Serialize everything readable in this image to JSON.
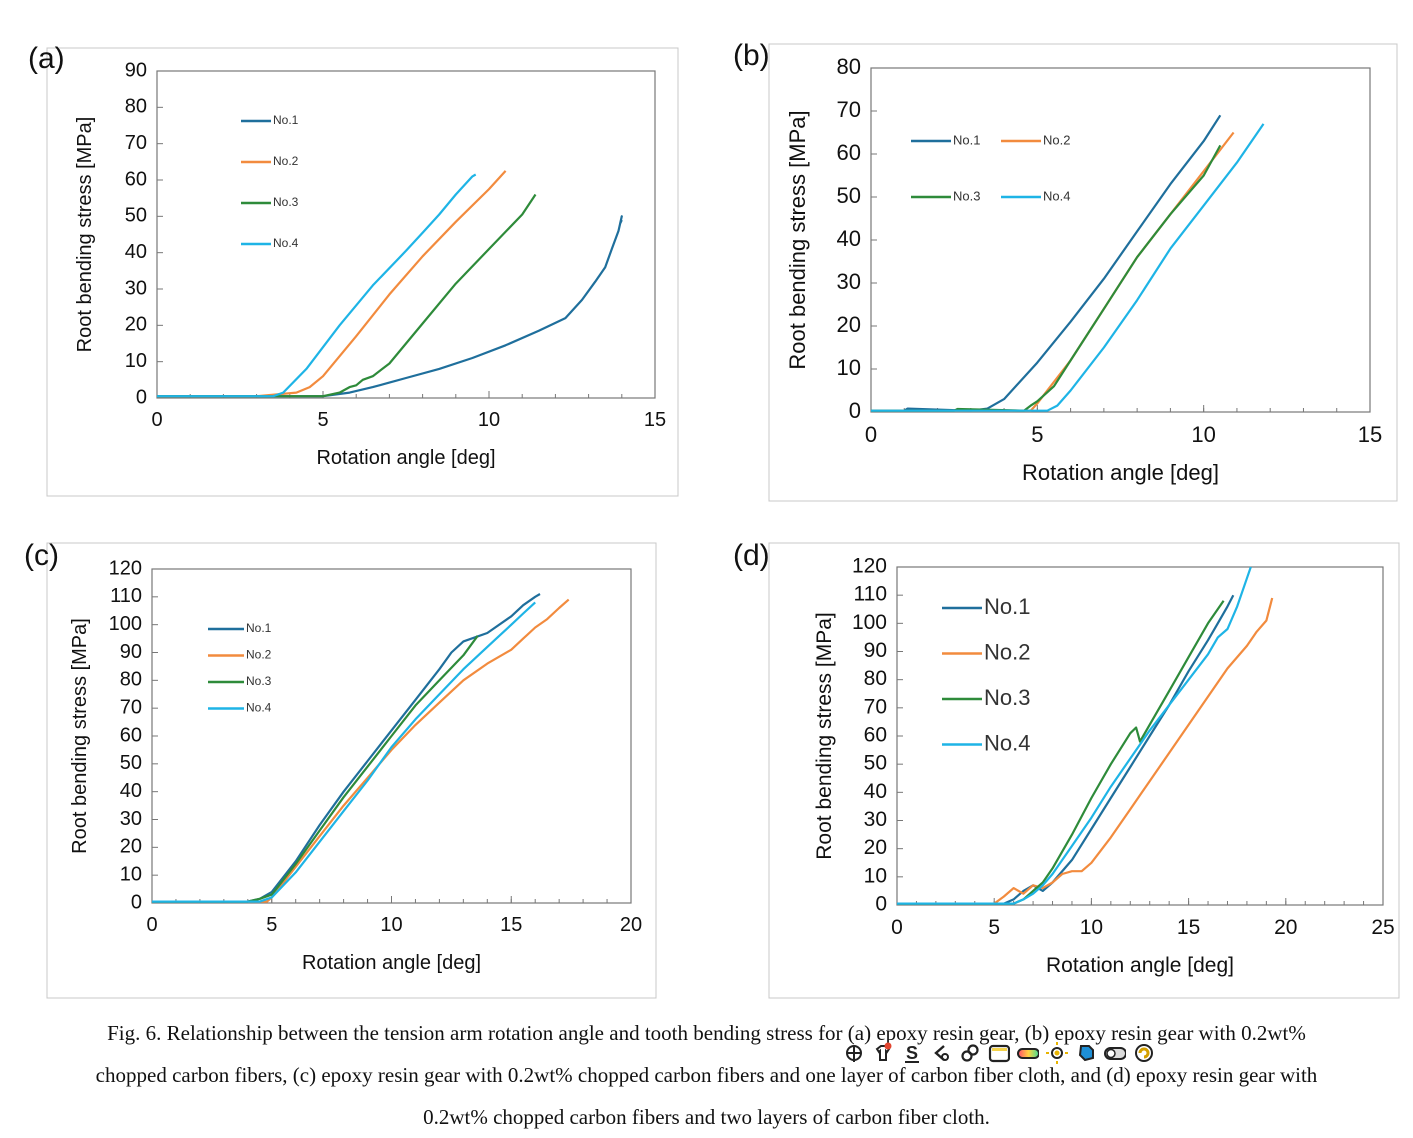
{
  "chart_data": [
    {
      "type": "line",
      "panel_label": "(a)",
      "xlabel": "Rotation angle [deg]",
      "ylabel": "Root bending stress [MPa]",
      "xlim": [
        0,
        15
      ],
      "ylim": [
        0,
        90
      ],
      "xticks": [
        0,
        5,
        10,
        15
      ],
      "yticks": [
        0,
        10,
        20,
        30,
        40,
        50,
        60,
        70,
        80,
        90
      ],
      "grid": false,
      "legend": "upper-left-inside, stacked",
      "series": [
        {
          "name": "No.1",
          "color": "#1f6f9c",
          "x": [
            0,
            3,
            5.0,
            5.8,
            6.5,
            7.5,
            8.5,
            9.5,
            10.5,
            11.5,
            12.3,
            12.8,
            13.2,
            13.5,
            13.7,
            13.9,
            14.0,
            13.95,
            14.0
          ],
          "y": [
            0.5,
            0.5,
            0.5,
            1.5,
            3,
            5.5,
            8,
            11,
            14.5,
            18.5,
            22,
            27,
            32,
            36,
            41,
            46,
            50,
            48,
            49
          ]
        },
        {
          "name": "No.2",
          "color": "#f28b3e",
          "x": [
            0,
            3,
            4.2,
            4.6,
            5.0,
            6.0,
            7.0,
            8.0,
            9.0,
            10.0,
            10.5
          ],
          "y": [
            0.5,
            0.5,
            1.5,
            3,
            6,
            17,
            28.5,
            39,
            48.5,
            57.5,
            62.5
          ]
        },
        {
          "name": "No.3",
          "color": "#2e8b3a",
          "x": [
            0,
            5.0,
            5.5,
            5.8,
            6.0,
            6.2,
            6.5,
            7.0,
            8.0,
            9.0,
            10.0,
            11.0,
            11.4
          ],
          "y": [
            0.5,
            0.5,
            1.5,
            3,
            3.5,
            5,
            6,
            9.5,
            20.5,
            31.5,
            41,
            50.5,
            56
          ]
        },
        {
          "name": "No.4",
          "color": "#1eb4e6",
          "x": [
            0,
            3.5,
            3.8,
            4.5,
            5.5,
            6.5,
            7.5,
            8.0,
            8.5,
            9.0,
            9.5,
            9.6
          ],
          "y": [
            0.5,
            0.5,
            1.5,
            8,
            20,
            31,
            40.5,
            45.5,
            50.5,
            56,
            61,
            61.5
          ]
        }
      ]
    },
    {
      "type": "line",
      "panel_label": "(b)",
      "xlabel": "Rotation angle [deg]",
      "ylabel": "Root bending stress [MPa]",
      "xlim": [
        0,
        15
      ],
      "ylim": [
        0,
        80
      ],
      "xticks": [
        0,
        5,
        10,
        15
      ],
      "yticks": [
        0,
        10,
        20,
        30,
        40,
        50,
        60,
        70,
        80
      ],
      "grid": false,
      "legend": "upper-left-inside, two columns",
      "series": [
        {
          "name": "No.1",
          "color": "#1f6f9c",
          "x": [
            0,
            1.0,
            1.1,
            3.0,
            3.5,
            4.0,
            5.0,
            6.0,
            7.0,
            8.0,
            9.0,
            10.0,
            10.5
          ],
          "y": [
            0.3,
            0.3,
            0.8,
            0.3,
            0.8,
            3,
            11.5,
            21,
            31,
            42,
            53,
            63,
            69
          ]
        },
        {
          "name": "No.2",
          "color": "#f28b3e",
          "x": [
            0,
            4.8,
            5.0,
            6.0,
            7.0,
            8.0,
            9.0,
            10.0,
            10.9
          ],
          "y": [
            0.3,
            0.3,
            2,
            12,
            24,
            36,
            46,
            56,
            65
          ]
        },
        {
          "name": "No.3",
          "color": "#2e8b3a",
          "x": [
            0,
            2.5,
            2.6,
            4.6,
            4.8,
            5.0,
            5.5,
            6.0,
            7.0,
            8.0,
            9.0,
            10.0,
            10.5
          ],
          "y": [
            0.3,
            0.3,
            0.7,
            0.3,
            1.5,
            2.5,
            6,
            12,
            24,
            36,
            46,
            55,
            62
          ]
        },
        {
          "name": "No.4",
          "color": "#1eb4e6",
          "x": [
            0,
            5.3,
            5.6,
            6.0,
            7.0,
            8.0,
            9.0,
            10.0,
            11.0,
            11.8
          ],
          "y": [
            0.3,
            0.3,
            1.5,
            5,
            15,
            26,
            38,
            48,
            58,
            67
          ]
        }
      ]
    },
    {
      "type": "line",
      "panel_label": "(c)",
      "xlabel": "Rotation angle [deg]",
      "ylabel": "Root bending stress [MPa]",
      "xlim": [
        0,
        20
      ],
      "ylim": [
        0,
        120
      ],
      "xticks": [
        0,
        5,
        10,
        15,
        20
      ],
      "yticks": [
        0,
        10,
        20,
        30,
        40,
        50,
        60,
        70,
        80,
        90,
        100,
        110,
        120
      ],
      "grid": false,
      "legend": "upper-left-inside, stacked",
      "series": [
        {
          "name": "No.1",
          "color": "#1f6f9c",
          "x": [
            0,
            4.0,
            4.5,
            5.0,
            6.0,
            7.0,
            8.0,
            9.0,
            10.0,
            11.0,
            12.0,
            12.5,
            13.0,
            14.0,
            15.0,
            15.5,
            16.0,
            16.2
          ],
          "y": [
            0.5,
            0.5,
            1.5,
            4,
            15,
            28,
            40,
            51,
            62,
            73,
            84,
            90,
            94,
            97,
            103,
            107,
            110,
            111
          ]
        },
        {
          "name": "No.2",
          "color": "#f28b3e",
          "x": [
            0,
            4.8,
            5.0,
            6.0,
            7.0,
            8.0,
            9.0,
            10.0,
            11.0,
            12.0,
            13.0,
            14.0,
            15.0,
            15.5,
            16.0,
            16.5,
            17.0,
            17.4
          ],
          "y": [
            0.5,
            0.5,
            2,
            13,
            24,
            35,
            45,
            55,
            64,
            72,
            80,
            86,
            91,
            95,
            99,
            102,
            106,
            109
          ]
        },
        {
          "name": "No.3",
          "color": "#2e8b3a",
          "x": [
            0,
            4.0,
            4.5,
            5.0,
            6.0,
            7.0,
            8.0,
            9.0,
            10.0,
            11.0,
            12.0,
            13.0,
            13.6
          ],
          "y": [
            0.5,
            0.5,
            1.5,
            3,
            14,
            26,
            38,
            49,
            60,
            71,
            80,
            89,
            96
          ]
        },
        {
          "name": "No.4",
          "color": "#1eb4e6",
          "x": [
            0,
            4.5,
            5.0,
            6.0,
            7.0,
            8.0,
            9.0,
            10.0,
            11.0,
            12.0,
            13.0,
            14.0,
            15.0,
            15.5,
            16.0
          ],
          "y": [
            0.5,
            0.5,
            2,
            11,
            22,
            33,
            44,
            56,
            66,
            75,
            84,
            92,
            100,
            104,
            108
          ]
        }
      ]
    },
    {
      "type": "line",
      "panel_label": "(d)",
      "xlabel": "Rotation angle [deg]",
      "ylabel": "Root bending stress [MPa]",
      "xlim": [
        0,
        25
      ],
      "ylim": [
        0,
        120
      ],
      "xticks": [
        0,
        5,
        10,
        15,
        20,
        25
      ],
      "yticks": [
        0,
        10,
        20,
        30,
        40,
        50,
        60,
        70,
        80,
        90,
        100,
        110,
        120
      ],
      "grid": false,
      "legend": "upper-left-inside, stacked, large",
      "series": [
        {
          "name": "No.1",
          "color": "#1f6f9c",
          "x": [
            0,
            5.5,
            6.0,
            6.5,
            7.0,
            7.5,
            8.0,
            9.0,
            10.0,
            11.0,
            12.0,
            13.0,
            14.0,
            15.0,
            16.0,
            16.5,
            17.0,
            17.3
          ],
          "y": [
            0.5,
            0.5,
            2,
            5,
            7,
            5,
            8,
            16,
            27,
            38,
            49,
            60,
            71,
            83,
            94,
            100,
            106,
            110
          ]
        },
        {
          "name": "No.2",
          "color": "#f28b3e",
          "x": [
            0,
            5.0,
            5.5,
            6.0,
            6.5,
            7.0,
            7.5,
            8.0,
            8.5,
            9.0,
            9.5,
            10.0,
            11.0,
            12.0,
            13.0,
            14.0,
            15.0,
            16.0,
            17.0,
            18.0,
            18.5,
            19.0,
            19.3
          ],
          "y": [
            0.5,
            0.5,
            3,
            6,
            4,
            7,
            6,
            8,
            11,
            12,
            12,
            15,
            24,
            34,
            44,
            54,
            64,
            74,
            84,
            92,
            97,
            101,
            109
          ]
        },
        {
          "name": "No.3",
          "color": "#2e8b3a",
          "x": [
            0,
            6.0,
            6.5,
            7.0,
            7.5,
            8.0,
            9.0,
            10.0,
            11.0,
            12.0,
            12.3,
            12.5,
            13.0,
            14.0,
            15.0,
            16.0,
            16.8
          ],
          "y": [
            0.5,
            0.5,
            2,
            5,
            8,
            13,
            25,
            38,
            50,
            61,
            63,
            58,
            64,
            76,
            88,
            100,
            108
          ]
        },
        {
          "name": "No.4",
          "color": "#1eb4e6",
          "x": [
            0,
            6.0,
            6.5,
            7.0,
            7.5,
            8.0,
            9.0,
            10.0,
            11.0,
            12.0,
            13.0,
            14.0,
            15.0,
            16.0,
            16.5,
            17.0,
            17.5,
            18.0,
            18.2
          ],
          "y": [
            0.5,
            0.5,
            2,
            4,
            7,
            11,
            21,
            31,
            42,
            52,
            62,
            71,
            80,
            89,
            95,
            98,
            106,
            116,
            120
          ]
        }
      ]
    }
  ],
  "caption": {
    "line1": "Fig. 6. Relationship between the tension arm rotation angle and tooth bending stress for (a) epoxy resin gear, (b) epoxy resin gear with 0.2wt%",
    "line2": "chopped carbon fibers, (c) epoxy resin gear with 0.2wt% chopped carbon fibers and one layer of carbon fiber cloth, and (d) epoxy resin gear with",
    "line3": "0.2wt% chopped carbon fibers and two layers of carbon fiber cloth."
  },
  "overlay_toolbar": {
    "icons": [
      "plus-circle-icon",
      "shirt-icon",
      "dollar-s-icon",
      "chevron-left-icon",
      "link-icon",
      "square-icon",
      "gradient-pill-icon",
      "sun-icon",
      "puzzle-icon",
      "toggle-icon",
      "spiral-icon"
    ],
    "colors": {
      "dark": "#222222",
      "accent_red": "#e2452f",
      "sun": "#e8b400",
      "puzzle": "#1e8fd6",
      "spiral": "#d4a000"
    }
  }
}
